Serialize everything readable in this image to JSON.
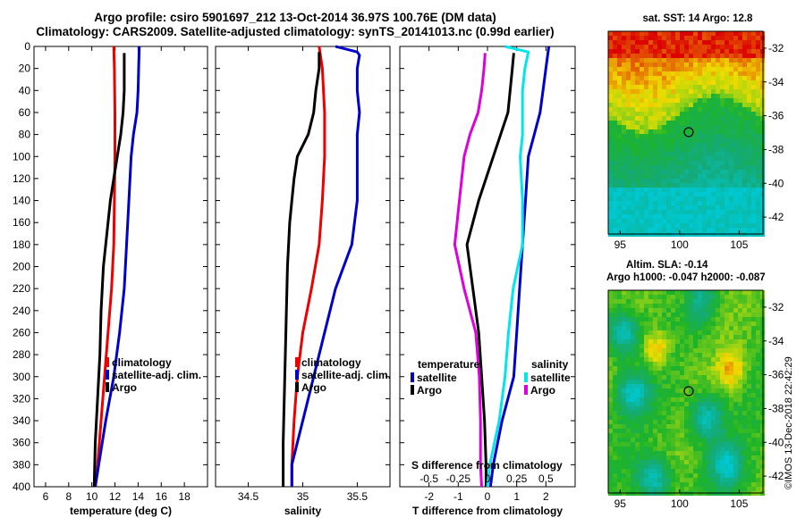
{
  "title_line1": "Argo profile: csiro 5901697_212 13-Oct-2014 36.97S 100.76E (DM data)",
  "title_line2": "Climatology: CARS2009. Satellite-adjusted climatology: synTS_20141013.nc (0.99d earlier)",
  "sst_title": "sat. SST: 14 Argo: 12.8",
  "altim_title": "Altim. SLA: -0.14",
  "altim_sub": "Argo h1000: -0.047 h2000: -0.087",
  "credit": "©IMOS 13-Dec-2018 22:42:29",
  "colors": {
    "climatology": "#ee0000",
    "satellite": "#0000cc",
    "argo": "#000000",
    "sal_satellite": "#00e5ee",
    "sal_argo": "#dd00dd"
  },
  "chart_data": [
    {
      "type": "line",
      "title": "",
      "xlabel": "temperature (deg C)",
      "ylabel": "",
      "xlim": [
        5,
        20
      ],
      "ylim": [
        400,
        0
      ],
      "x_ticks": [
        6,
        8,
        10,
        12,
        14,
        16,
        18
      ],
      "y_ticks": [
        0,
        20,
        40,
        60,
        80,
        100,
        120,
        140,
        160,
        180,
        200,
        220,
        240,
        260,
        280,
        300,
        320,
        340,
        360,
        380,
        400
      ],
      "legend_position": "lower-right",
      "legend": [
        "climatology",
        "satellite-adj. clim.",
        "Argo"
      ],
      "series": [
        {
          "name": "climatology",
          "color": "#ee0000",
          "depth": [
            0,
            20,
            60,
            100,
            140,
            180,
            220,
            260,
            300,
            340,
            380,
            400
          ],
          "values": [
            11.9,
            11.95,
            12.0,
            12.0,
            11.95,
            11.9,
            11.7,
            11.4,
            11.1,
            10.8,
            10.5,
            10.3
          ]
        },
        {
          "name": "satellite-adj. clim.",
          "color": "#0000cc",
          "depth": [
            0,
            20,
            40,
            60,
            80,
            100,
            140,
            180,
            220,
            260,
            300,
            340,
            380,
            400
          ],
          "values": [
            14.1,
            14.05,
            14.0,
            13.9,
            13.6,
            13.4,
            13.2,
            13.0,
            12.8,
            12.4,
            11.9,
            11.2,
            10.6,
            10.3
          ]
        },
        {
          "name": "Argo",
          "color": "#000000",
          "depth": [
            6,
            20,
            40,
            60,
            80,
            100,
            120,
            140,
            160,
            180,
            200,
            240,
            280,
            320,
            360,
            400
          ],
          "values": [
            12.8,
            12.8,
            12.8,
            12.7,
            12.5,
            12.2,
            11.9,
            11.6,
            11.4,
            11.2,
            11.0,
            10.8,
            10.7,
            10.5,
            10.3,
            10.2
          ]
        }
      ]
    },
    {
      "type": "line",
      "title": "",
      "xlabel": "salinity",
      "ylabel": "",
      "xlim": [
        34.2,
        35.8
      ],
      "ylim": [
        400,
        0
      ],
      "x_ticks": [
        34.5,
        35,
        35.5
      ],
      "legend_position": "lower-right",
      "legend": [
        "climatology",
        "satellite-adj. clim.",
        "Argo"
      ],
      "series": [
        {
          "name": "climatology",
          "color": "#ee0000",
          "depth": [
            0,
            20,
            60,
            100,
            140,
            180,
            220,
            260,
            300,
            340,
            380,
            400
          ],
          "values": [
            35.15,
            35.18,
            35.2,
            35.2,
            35.18,
            35.15,
            35.08,
            35.0,
            34.95,
            34.92,
            34.9,
            34.9
          ]
        },
        {
          "name": "satellite-adj. clim.",
          "color": "#0000cc",
          "depth": [
            0,
            5,
            8,
            20,
            40,
            60,
            80,
            100,
            140,
            180,
            220,
            260,
            300,
            340,
            380,
            400
          ],
          "values": [
            35.3,
            35.5,
            35.52,
            35.5,
            35.5,
            35.52,
            35.5,
            35.5,
            35.5,
            35.45,
            35.3,
            35.2,
            35.1,
            35.0,
            34.9,
            34.9
          ]
        },
        {
          "name": "Argo",
          "color": "#000000",
          "depth": [
            5,
            20,
            40,
            60,
            80,
            100,
            120,
            140,
            160,
            200,
            240,
            280,
            320,
            360,
            400
          ],
          "values": [
            35.15,
            35.15,
            35.12,
            35.1,
            35.05,
            34.95,
            34.92,
            34.9,
            34.88,
            34.86,
            34.85,
            34.84,
            34.83,
            34.82,
            34.82
          ]
        }
      ]
    },
    {
      "type": "line",
      "title": "",
      "xlabel": "T difference from climatology",
      "xlabel_top": "S difference from climatology",
      "ylabel": "",
      "xlim": [
        -3,
        3
      ],
      "ylim": [
        400,
        0
      ],
      "x_ticks": [
        -2,
        -1,
        0,
        1,
        2
      ],
      "s_ticks": [
        "-0.5",
        "-0.25",
        "0",
        "0.25",
        "0.5"
      ],
      "legend_position": "lower-right",
      "legend_temperature_header": "temperature",
      "legend_salinity_header": "salinity",
      "legend": [
        "satellite",
        "Argo",
        "satellite",
        "Argo"
      ],
      "series": [
        {
          "name": "temperature satellite",
          "color": "#0000cc",
          "depth": [
            0,
            20,
            40,
            60,
            80,
            100,
            140,
            180,
            220,
            260,
            300,
            340,
            380,
            400
          ],
          "values": [
            2.1,
            2.0,
            1.9,
            1.8,
            1.6,
            1.4,
            1.3,
            1.2,
            1.1,
            1.0,
            0.9,
            0.5,
            0.2,
            0.1
          ]
        },
        {
          "name": "temperature Argo",
          "color": "#000000",
          "depth": [
            6,
            20,
            60,
            100,
            140,
            180,
            220,
            260,
            300,
            340,
            380,
            400
          ],
          "values": [
            0.9,
            0.85,
            0.7,
            0.2,
            -0.3,
            -0.7,
            -0.5,
            -0.3,
            -0.2,
            -0.1,
            -0.05,
            -0.05
          ]
        },
        {
          "name": "salinity satellite",
          "color": "#00e5ee",
          "depth": [
            0,
            5,
            20,
            40,
            60,
            80,
            100,
            140,
            180,
            220,
            260,
            300,
            340,
            380,
            400
          ],
          "values": [
            0.15,
            0.35,
            0.32,
            0.3,
            0.3,
            0.3,
            0.28,
            0.3,
            0.3,
            0.22,
            0.18,
            0.15,
            0.1,
            0.02,
            0.0
          ]
        },
        {
          "name": "salinity Argo",
          "color": "#dd00dd",
          "depth": [
            6,
            20,
            40,
            60,
            80,
            100,
            140,
            180,
            220,
            260,
            300,
            340,
            380,
            400
          ],
          "values": [
            -0.02,
            -0.03,
            -0.05,
            -0.08,
            -0.15,
            -0.2,
            -0.24,
            -0.28,
            -0.2,
            -0.1,
            -0.07,
            -0.06,
            -0.06,
            -0.05
          ]
        }
      ]
    },
    {
      "type": "heatmap",
      "title": "sat. SST: 14 Argo: 12.8",
      "xlim": [
        94,
        107
      ],
      "ylim": [
        -43,
        -31
      ],
      "x_ticks": [
        95,
        100,
        105
      ],
      "y_ticks": [
        -32,
        -34,
        -36,
        -38,
        -40,
        -42
      ],
      "marker": {
        "lon": 100.76,
        "lat": -36.97
      }
    },
    {
      "type": "heatmap",
      "title": "Altim. SLA: -0.14",
      "xlim": [
        94,
        107
      ],
      "ylim": [
        -43,
        -31
      ],
      "x_ticks": [
        95,
        100,
        105
      ],
      "y_ticks": [
        -32,
        -34,
        -36,
        -38,
        -40,
        -42
      ],
      "marker": {
        "lon": 100.76,
        "lat": -36.97
      }
    }
  ]
}
